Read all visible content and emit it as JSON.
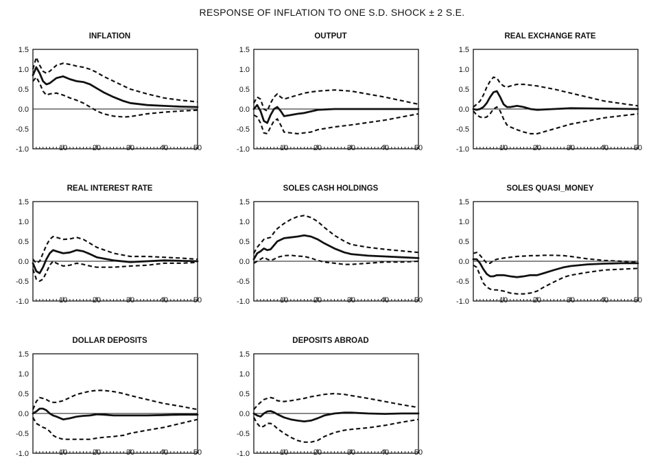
{
  "title": "RESPONSE OF INFLATION TO ONE S.D. SHOCK ± 2 S.E.",
  "chart_data": [
    {
      "type": "line",
      "title": "INFLATION",
      "xlim": [
        1,
        50
      ],
      "ylim": [
        -1.0,
        1.5
      ],
      "x_ticks": [
        10,
        20,
        30,
        40,
        50
      ],
      "y_ticks": [
        "1.5",
        "1.0",
        "0.5",
        "0.0",
        "-0.5",
        "-1.0"
      ],
      "x": [
        1,
        2,
        3,
        4,
        5,
        6,
        8,
        10,
        12,
        14,
        16,
        18,
        20,
        22,
        25,
        28,
        30,
        35,
        40,
        45,
        50
      ],
      "series": [
        {
          "values": [
            0.85,
            1.05,
            0.9,
            0.7,
            0.62,
            0.65,
            0.78,
            0.82,
            0.75,
            0.7,
            0.68,
            0.62,
            0.52,
            0.42,
            0.3,
            0.2,
            0.15,
            0.1,
            0.08,
            0.06,
            0.05
          ]
        },
        {
          "values": [
            1.0,
            1.3,
            1.1,
            0.95,
            0.9,
            0.95,
            1.1,
            1.15,
            1.12,
            1.08,
            1.05,
            1.0,
            0.92,
            0.82,
            0.7,
            0.58,
            0.5,
            0.38,
            0.28,
            0.22,
            0.18
          ]
        },
        {
          "values": [
            0.7,
            0.8,
            0.65,
            0.45,
            0.35,
            0.38,
            0.4,
            0.35,
            0.28,
            0.22,
            0.15,
            0.05,
            -0.05,
            -0.12,
            -0.18,
            -0.2,
            -0.19,
            -0.12,
            -0.08,
            -0.05,
            -0.03
          ]
        }
      ]
    },
    {
      "type": "line",
      "title": "OUTPUT",
      "xlim": [
        1,
        50
      ],
      "ylim": [
        -1.0,
        1.5
      ],
      "x_ticks": [
        10,
        20,
        30,
        40,
        50
      ],
      "y_ticks": [
        "1.5",
        "1.0",
        "0.5",
        "0.0",
        "-0.5",
        "-1.0"
      ],
      "x": [
        1,
        2,
        3,
        4,
        5,
        6,
        7,
        8,
        9,
        10,
        12,
        14,
        16,
        18,
        20,
        25,
        30,
        40,
        50
      ],
      "series": [
        {
          "values": [
            0.0,
            0.1,
            -0.05,
            -0.3,
            -0.35,
            -0.15,
            0.0,
            0.05,
            -0.05,
            -0.18,
            -0.15,
            -0.12,
            -0.1,
            -0.06,
            -0.02,
            0.0,
            0.0,
            0.0,
            0.0
          ]
        },
        {
          "values": [
            0.15,
            0.3,
            0.25,
            0.0,
            -0.05,
            0.15,
            0.3,
            0.38,
            0.3,
            0.25,
            0.3,
            0.35,
            0.4,
            0.43,
            0.45,
            0.48,
            0.45,
            0.3,
            0.12
          ]
        },
        {
          "values": [
            -0.15,
            -0.2,
            -0.35,
            -0.6,
            -0.62,
            -0.45,
            -0.3,
            -0.25,
            -0.4,
            -0.58,
            -0.6,
            -0.62,
            -0.6,
            -0.58,
            -0.52,
            -0.45,
            -0.4,
            -0.28,
            -0.12
          ]
        }
      ]
    },
    {
      "type": "line",
      "title": "REAL EXCHANGE RATE",
      "xlim": [
        1,
        50
      ],
      "ylim": [
        -1.0,
        1.5
      ],
      "x_ticks": [
        10,
        20,
        30,
        40,
        50
      ],
      "y_ticks": [
        "1.5",
        "1.0",
        "0.5",
        "0.0",
        "-0.5",
        "-1.0"
      ],
      "x": [
        1,
        2,
        3,
        4,
        5,
        6,
        7,
        8,
        9,
        10,
        11,
        12,
        14,
        16,
        18,
        20,
        25,
        30,
        40,
        50
      ],
      "series": [
        {
          "values": [
            0.0,
            -0.02,
            0.0,
            0.05,
            0.15,
            0.3,
            0.42,
            0.45,
            0.3,
            0.12,
            0.05,
            0.05,
            0.08,
            0.05,
            0.0,
            -0.02,
            0.0,
            0.02,
            0.01,
            0.0
          ]
        },
        {
          "values": [
            0.05,
            0.12,
            0.2,
            0.35,
            0.55,
            0.7,
            0.8,
            0.78,
            0.65,
            0.58,
            0.55,
            0.58,
            0.62,
            0.62,
            0.6,
            0.58,
            0.5,
            0.4,
            0.2,
            0.08
          ]
        },
        {
          "values": [
            -0.05,
            -0.15,
            -0.2,
            -0.22,
            -0.2,
            -0.12,
            0.0,
            0.05,
            -0.05,
            -0.25,
            -0.4,
            -0.45,
            -0.52,
            -0.58,
            -0.62,
            -0.62,
            -0.5,
            -0.38,
            -0.22,
            -0.12
          ]
        }
      ]
    },
    {
      "type": "line",
      "title": "REAL INTEREST RATE",
      "xlim": [
        1,
        50
      ],
      "ylim": [
        -1.0,
        1.5
      ],
      "x_ticks": [
        10,
        20,
        30,
        40,
        50
      ],
      "y_ticks": [
        "1.5",
        "1.0",
        "0.5",
        "0.0",
        "-0.5",
        "-1.0"
      ],
      "x": [
        1,
        2,
        3,
        4,
        5,
        6,
        7,
        8,
        10,
        12,
        14,
        16,
        18,
        20,
        25,
        30,
        35,
        40,
        45,
        50
      ],
      "series": [
        {
          "values": [
            -0.05,
            -0.25,
            -0.3,
            -0.15,
            0.05,
            0.2,
            0.28,
            0.25,
            0.2,
            0.22,
            0.28,
            0.25,
            0.18,
            0.1,
            0.02,
            -0.02,
            0.0,
            0.02,
            0.01,
            0.0
          ]
        },
        {
          "values": [
            0.05,
            -0.05,
            0.0,
            0.2,
            0.4,
            0.55,
            0.62,
            0.6,
            0.55,
            0.56,
            0.6,
            0.55,
            0.45,
            0.35,
            0.2,
            0.12,
            0.12,
            0.1,
            0.08,
            0.05
          ]
        },
        {
          "values": [
            -0.2,
            -0.45,
            -0.5,
            -0.45,
            -0.28,
            -0.1,
            0.0,
            -0.05,
            -0.12,
            -0.1,
            -0.05,
            -0.08,
            -0.12,
            -0.15,
            -0.15,
            -0.12,
            -0.1,
            -0.05,
            -0.05,
            -0.03
          ]
        }
      ]
    },
    {
      "type": "line",
      "title": "SOLES CASH HOLDINGS",
      "xlim": [
        1,
        50
      ],
      "ylim": [
        -1.0,
        1.5
      ],
      "x_ticks": [
        10,
        20,
        30,
        40,
        50
      ],
      "y_ticks": [
        "1.5",
        "1.0",
        "0.5",
        "0.0",
        "-0.5",
        "-1.0"
      ],
      "x": [
        1,
        2,
        3,
        4,
        5,
        6,
        7,
        8,
        10,
        12,
        14,
        16,
        18,
        20,
        22,
        25,
        28,
        30,
        35,
        40,
        45,
        50
      ],
      "series": [
        {
          "values": [
            0.05,
            0.2,
            0.25,
            0.32,
            0.28,
            0.3,
            0.4,
            0.5,
            0.58,
            0.6,
            0.62,
            0.65,
            0.62,
            0.55,
            0.45,
            0.32,
            0.22,
            0.18,
            0.14,
            0.12,
            0.1,
            0.08
          ]
        },
        {
          "values": [
            0.2,
            0.35,
            0.45,
            0.55,
            0.58,
            0.6,
            0.72,
            0.82,
            0.95,
            1.05,
            1.12,
            1.15,
            1.1,
            1.0,
            0.85,
            0.65,
            0.5,
            0.42,
            0.35,
            0.3,
            0.26,
            0.22
          ]
        },
        {
          "values": [
            -0.05,
            0.0,
            0.05,
            0.1,
            0.05,
            0.02,
            0.05,
            0.1,
            0.14,
            0.15,
            0.13,
            0.12,
            0.08,
            0.02,
            -0.02,
            -0.05,
            -0.08,
            -0.08,
            -0.05,
            -0.02,
            -0.02,
            0.0
          ]
        }
      ]
    },
    {
      "type": "line",
      "title": "SOLES QUASI_MONEY",
      "xlim": [
        1,
        50
      ],
      "ylim": [
        -1.0,
        1.5
      ],
      "x_ticks": [
        10,
        20,
        30,
        40,
        50
      ],
      "y_ticks": [
        "1.5",
        "1.0",
        "0.5",
        "0.0",
        "-0.5",
        "-1.0"
      ],
      "x": [
        1,
        2,
        3,
        4,
        5,
        6,
        7,
        8,
        10,
        12,
        14,
        16,
        18,
        20,
        22,
        25,
        28,
        30,
        35,
        40,
        45,
        50
      ],
      "series": [
        {
          "values": [
            0.05,
            0.05,
            -0.05,
            -0.2,
            -0.32,
            -0.38,
            -0.38,
            -0.35,
            -0.35,
            -0.38,
            -0.4,
            -0.38,
            -0.35,
            -0.35,
            -0.3,
            -0.22,
            -0.15,
            -0.12,
            -0.08,
            -0.06,
            -0.05,
            -0.05
          ]
        },
        {
          "values": [
            0.2,
            0.22,
            0.15,
            0.05,
            -0.05,
            -0.05,
            0.02,
            0.05,
            0.08,
            0.1,
            0.12,
            0.13,
            0.14,
            0.14,
            0.15,
            0.15,
            0.14,
            0.12,
            0.06,
            0.02,
            0.0,
            -0.02
          ]
        },
        {
          "values": [
            -0.1,
            -0.15,
            -0.35,
            -0.55,
            -0.65,
            -0.7,
            -0.72,
            -0.72,
            -0.75,
            -0.8,
            -0.82,
            -0.82,
            -0.8,
            -0.75,
            -0.65,
            -0.52,
            -0.4,
            -0.35,
            -0.28,
            -0.22,
            -0.2,
            -0.18
          ]
        }
      ]
    },
    {
      "type": "line",
      "title": "DOLLAR DEPOSITS",
      "xlim": [
        1,
        50
      ],
      "ylim": [
        -1.0,
        1.5
      ],
      "x_ticks": [
        10,
        20,
        30,
        40,
        50
      ],
      "y_ticks": [
        "1.5",
        "1.0",
        "0.5",
        "0.0",
        "-0.5",
        "-1.0"
      ],
      "x": [
        1,
        2,
        3,
        4,
        5,
        6,
        7,
        8,
        10,
        12,
        14,
        16,
        18,
        20,
        22,
        25,
        28,
        30,
        35,
        40,
        45,
        50
      ],
      "series": [
        {
          "values": [
            0.0,
            0.05,
            0.12,
            0.12,
            0.08,
            0.0,
            -0.05,
            -0.08,
            -0.15,
            -0.12,
            -0.08,
            -0.06,
            -0.05,
            -0.02,
            -0.03,
            -0.05,
            -0.05,
            -0.05,
            -0.05,
            -0.04,
            -0.03,
            -0.03
          ]
        },
        {
          "values": [
            0.1,
            0.3,
            0.4,
            0.38,
            0.35,
            0.3,
            0.28,
            0.28,
            0.32,
            0.4,
            0.48,
            0.52,
            0.56,
            0.58,
            0.58,
            0.55,
            0.5,
            0.45,
            0.35,
            0.25,
            0.18,
            0.1
          ]
        },
        {
          "values": [
            -0.1,
            -0.25,
            -0.3,
            -0.35,
            -0.38,
            -0.45,
            -0.55,
            -0.6,
            -0.65,
            -0.65,
            -0.65,
            -0.65,
            -0.65,
            -0.62,
            -0.6,
            -0.58,
            -0.55,
            -0.5,
            -0.42,
            -0.35,
            -0.25,
            -0.15
          ]
        }
      ]
    },
    {
      "type": "line",
      "title": "DEPOSITS ABROAD",
      "xlim": [
        1,
        50
      ],
      "ylim": [
        -1.0,
        1.5
      ],
      "x_ticks": [
        10,
        20,
        30,
        40,
        50
      ],
      "y_ticks": [
        "1.5",
        "1.0",
        "0.5",
        "0.0",
        "-0.5",
        "-1.0"
      ],
      "x": [
        1,
        2,
        3,
        4,
        5,
        6,
        7,
        8,
        10,
        12,
        14,
        16,
        18,
        20,
        22,
        25,
        28,
        30,
        35,
        40,
        45,
        50
      ],
      "series": [
        {
          "values": [
            0.0,
            -0.05,
            -0.08,
            0.0,
            0.05,
            0.06,
            0.03,
            -0.02,
            -0.1,
            -0.15,
            -0.18,
            -0.2,
            -0.18,
            -0.12,
            -0.05,
            0.0,
            0.02,
            0.02,
            0.0,
            -0.01,
            0.0,
            0.0
          ]
        },
        {
          "values": [
            0.1,
            0.2,
            0.28,
            0.35,
            0.38,
            0.4,
            0.38,
            0.32,
            0.3,
            0.32,
            0.35,
            0.38,
            0.42,
            0.45,
            0.48,
            0.5,
            0.48,
            0.45,
            0.38,
            0.3,
            0.22,
            0.15
          ]
        },
        {
          "values": [
            -0.1,
            -0.25,
            -0.35,
            -0.32,
            -0.25,
            -0.25,
            -0.3,
            -0.38,
            -0.5,
            -0.6,
            -0.68,
            -0.72,
            -0.72,
            -0.68,
            -0.58,
            -0.48,
            -0.42,
            -0.4,
            -0.36,
            -0.3,
            -0.22,
            -0.15
          ]
        }
      ]
    }
  ]
}
